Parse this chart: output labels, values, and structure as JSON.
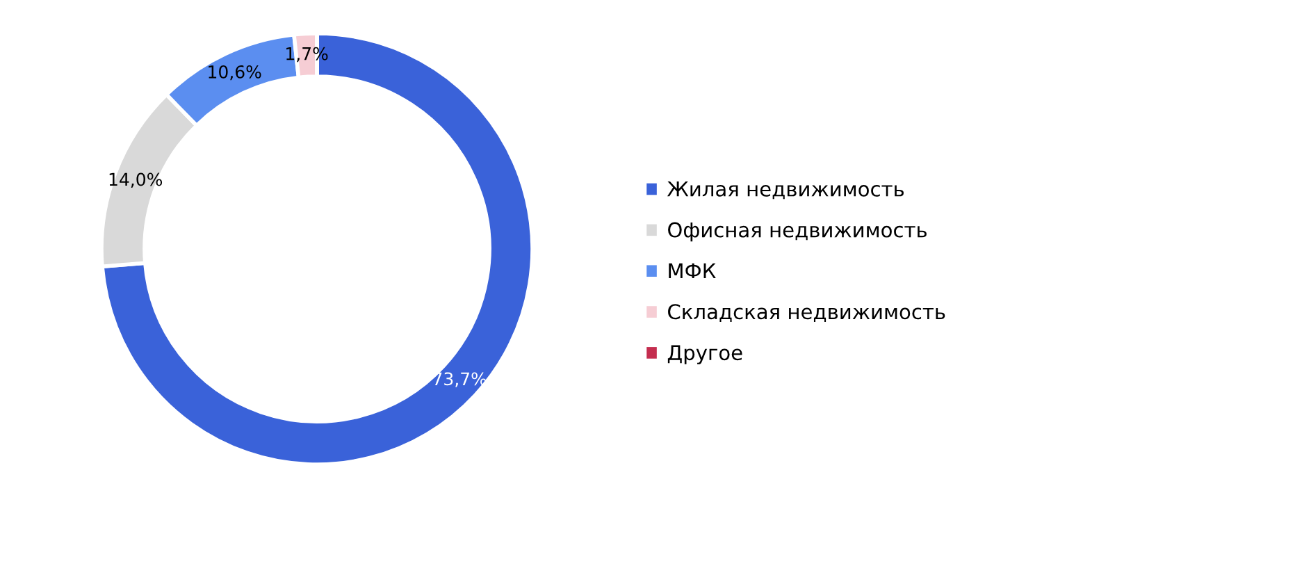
{
  "chart_data": {
    "type": "donut",
    "categories": [
      "Жилая недвижимость",
      "Офисная недвижимость",
      "МФК",
      "Складская недвижимость",
      "Другое"
    ],
    "values": [
      73.7,
      14.0,
      10.6,
      1.7,
      0
    ],
    "colors": [
      "#3a62d9",
      "#d9d9d9",
      "#5b8ef0",
      "#f6cdd4",
      "#c42d4f"
    ],
    "value_labels": [
      "73,7%",
      "14,0%",
      "10,6%",
      "1,7%",
      null
    ],
    "legend": "right"
  }
}
